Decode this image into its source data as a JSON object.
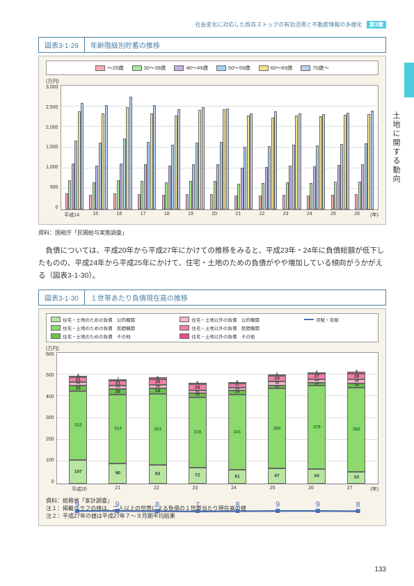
{
  "header": {
    "text": "社会変化に対応した既存ストックの有効活用と不動産情報の多様化",
    "chapter": "第3章"
  },
  "side_label": "土地に関する動向",
  "fig1": {
    "number": "図表3-1-29",
    "title": "年齢階級別貯蓄の推移",
    "y_unit": "(万円)",
    "y_max": 3000,
    "y_ticks": [
      "3,000",
      "2,500",
      "2,000",
      "1,500",
      "1,000",
      "500",
      "0"
    ],
    "x_unit": "(年)",
    "colors": {
      "a29": "#f8a9b7",
      "a30": "#a8e89a",
      "a40": "#c3b0e6",
      "a50": "#9fd4f0",
      "a60": "#f5e18a",
      "a70": "#b8d0ef"
    },
    "series_labels": {
      "a29": "〜29歳",
      "a30": "30〜39歳",
      "a40": "40〜49歳",
      "a50": "50〜59歳",
      "a60": "60〜69歳",
      "a70": "70歳〜"
    },
    "years": [
      "平成14",
      "15",
      "16",
      "17",
      "18",
      "19",
      "20",
      "21",
      "22",
      "23",
      "24",
      "25",
      "26"
    ],
    "data": [
      [
        380,
        700,
        1100,
        1650,
        2350,
        2550
      ],
      [
        350,
        650,
        1050,
        1600,
        2300,
        2500
      ],
      [
        380,
        700,
        1100,
        1700,
        2450,
        2700
      ],
      [
        360,
        680,
        1080,
        1620,
        2300,
        2500
      ],
      [
        350,
        650,
        1050,
        1550,
        2250,
        2400
      ],
      [
        360,
        680,
        1080,
        1600,
        2380,
        2450
      ],
      [
        370,
        690,
        1090,
        1620,
        2400,
        2420
      ],
      [
        330,
        620,
        1000,
        1500,
        2250,
        2300
      ],
      [
        340,
        640,
        1020,
        1520,
        2200,
        2350
      ],
      [
        350,
        650,
        1050,
        1550,
        2250,
        2300
      ],
      [
        340,
        630,
        1040,
        1530,
        2230,
        2280
      ],
      [
        350,
        660,
        1060,
        1560,
        2260,
        2320
      ],
      [
        360,
        670,
        1080,
        1580,
        2290,
        2360
      ]
    ],
    "source": "資料：国税庁「民間給与実態調査」"
  },
  "paragraph": "負債については、平成20年から平成27年にかけての推移をみると、平成23年・24年に負債総額が低下したものの、平成24年から平成25年にかけて、住宅・土地のための負債がやや増加している傾向がうかがえる（図表3-1-30）。",
  "fig2": {
    "number": "図表3-1-30",
    "title": "１世帯あたり負債現在高の推移",
    "y_unit": "(万円)",
    "y_max": 600,
    "y_ticks": [
      "600",
      "500",
      "400",
      "300",
      "200",
      "100",
      "0"
    ],
    "x_unit": "(年)",
    "legend": {
      "s1": {
        "label": "住宅・土地のための負債　公的機関",
        "color": "#b8e6a0"
      },
      "s2": {
        "label": "住宅・土地のための負債　民間機関",
        "color": "#8cd96e"
      },
      "s3": {
        "label": "住宅・土地のための負債　その他",
        "color": "#6bc24a"
      },
      "s4": {
        "label": "住宅・土地以外の負債　公的機関",
        "color": "#f5b5c8"
      },
      "s5": {
        "label": "住宅・土地以外の負債　民間機関",
        "color": "#f07da5"
      },
      "s6": {
        "label": "住宅・土地以外の負債　その他",
        "color": "#e84b8a"
      },
      "line": {
        "label": "月賦・年賦",
        "color": "#4a6fb0"
      }
    },
    "years": [
      "平成20",
      "21",
      "22",
      "23",
      "24",
      "25",
      "26",
      "27"
    ],
    "stacks": [
      {
        "s1": 107,
        "s2": 312,
        "s3": 25,
        "s4": 16,
        "s5": 21,
        "s6": 8,
        "sum": 489,
        "line": 9
      },
      {
        "s1": 90,
        "s2": 314,
        "s3": 25,
        "s4": 15,
        "s5": 21,
        "s6": 7,
        "sum": 472,
        "line": 9
      },
      {
        "s1": 83,
        "s2": 324,
        "s3": 24,
        "s4": 16,
        "s5": 26,
        "s6": 8,
        "sum": 481,
        "line": 8
      },
      {
        "s1": 72,
        "s2": 318,
        "s3": 19,
        "s4": 12,
        "s5": 28,
        "s6": 6,
        "sum": 455,
        "line": 7
      },
      {
        "s1": 61,
        "s2": 341,
        "s3": 19,
        "s4": 14,
        "s5": 17,
        "s6": 8,
        "sum": 460,
        "line": 8
      },
      {
        "s1": 67,
        "s2": 365,
        "s3": 13,
        "s4": 18,
        "s5": 24,
        "s6": 5,
        "sum": 492,
        "line": 9
      },
      {
        "s1": 64,
        "s2": 379,
        "s3": 15,
        "s4": 14,
        "s5": 27,
        "s6": 5,
        "sum": 504,
        "line": 9
      },
      {
        "s1": 53,
        "s2": 382,
        "s3": 18,
        "s4": 18,
        "s5": 28,
        "s6": 8,
        "sum": 507,
        "line": 8
      }
    ],
    "source": "資料：総務省「家計調査」",
    "note1": "注１：掲載グラフの値は、二人以上の世帯による負債の１世帯当たり現在高の値",
    "note2": "注２：平成27年の値は平成27年７〜９月期平均結果"
  },
  "page_number": "133"
}
